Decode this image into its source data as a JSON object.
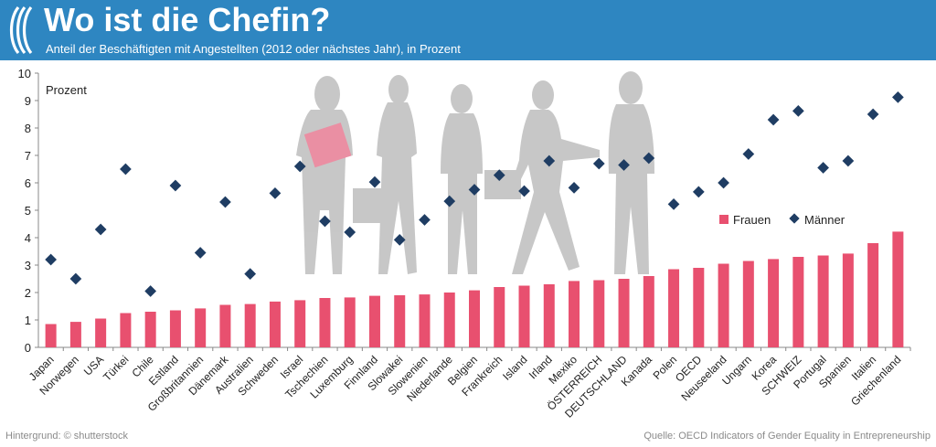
{
  "header": {
    "title": "Wo ist die Chefin?",
    "subtitle": "Anteil der Beschäftigten mit Angestellten (2012 oder nächstes Jahr), in Prozent"
  },
  "footer": {
    "background_credit": "Hintergrund: © shutterstock",
    "source": "Quelle: OECD Indicators of Gender Equality in Entrepreneurship"
  },
  "colors": {
    "header_bg": "#2e86c1",
    "frauen": "#e8506f",
    "maenner": "#1f3d63",
    "silhouettes": "#c2c2c2"
  },
  "chart_data": {
    "type": "bar",
    "unit_label": "Prozent",
    "ylim": [
      0,
      10
    ],
    "yticks": [
      0,
      1,
      2,
      3,
      4,
      5,
      6,
      7,
      8,
      9,
      10
    ],
    "categories": [
      "Japan",
      "Norwegen",
      "USA",
      "Türkei",
      "Chile",
      "Estland",
      "Großbritannien",
      "Dänemark",
      "Australien",
      "Schweden",
      "Israel",
      "Tschechien",
      "Luxemburg",
      "Finnland",
      "Slowakei",
      "Slowenien",
      "Niederlande",
      "Belgien",
      "Frankreich",
      "Island",
      "Irland",
      "Mexiko",
      "ÖSTERREICH",
      "DEUTSCHLAND",
      "Kanada",
      "Polen",
      "OECD",
      "Neuseeland",
      "Ungarn",
      "Korea",
      "SCHWEIZ",
      "Portugal",
      "Spanien",
      "Italien",
      "Griechenland"
    ],
    "series": [
      {
        "name": "Frauen",
        "type": "bar",
        "values": [
          0.85,
          0.93,
          1.05,
          1.25,
          1.3,
          1.35,
          1.42,
          1.55,
          1.58,
          1.67,
          1.72,
          1.8,
          1.82,
          1.88,
          1.9,
          1.93,
          2.0,
          2.08,
          2.2,
          2.25,
          2.3,
          2.42,
          2.45,
          2.5,
          2.6,
          2.85,
          2.9,
          3.05,
          3.15,
          3.22,
          3.3,
          3.35,
          3.42,
          3.8,
          4.22
        ]
      },
      {
        "name": "Männer",
        "type": "scatter",
        "values": [
          3.2,
          2.5,
          4.3,
          6.5,
          2.05,
          5.9,
          3.45,
          5.3,
          2.68,
          5.62,
          6.6,
          4.6,
          4.2,
          6.03,
          3.92,
          4.65,
          5.33,
          5.75,
          6.28,
          5.7,
          6.8,
          5.82,
          6.7,
          6.65,
          6.9,
          5.22,
          5.67,
          6.0,
          7.05,
          8.3,
          8.62,
          6.55,
          6.8,
          8.5,
          9.12
        ]
      }
    ],
    "legend": [
      "Frauen",
      "Männer"
    ],
    "legend_position": "right",
    "grid": false
  }
}
